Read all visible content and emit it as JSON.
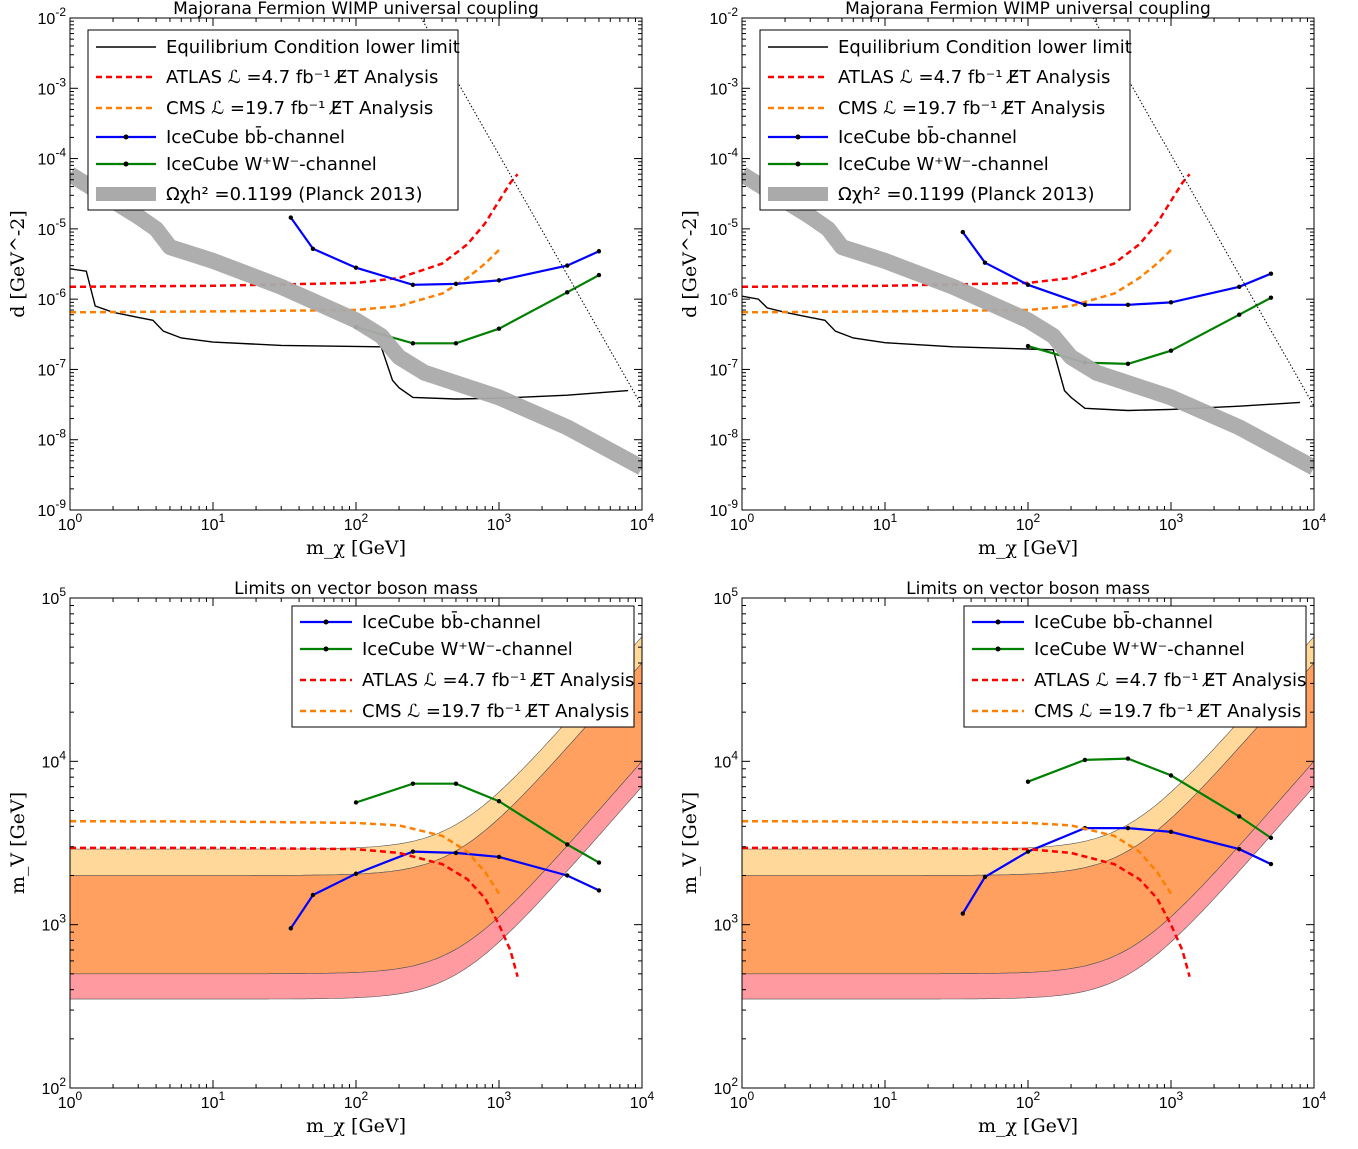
{
  "chart_data": [
    {
      "type": "line",
      "panel": "top-left",
      "title": "Majorana Fermion WIMP universal coupling",
      "xlabel": "m_χ [GeV]",
      "ylabel": "d [GeV^-2]",
      "xscale": "log",
      "yscale": "log",
      "xlim": [
        1,
        10000
      ],
      "ylim": [
        1e-09,
        0.01
      ],
      "xticks": [
        "10^0",
        "10^1",
        "10^2",
        "10^3",
        "10^4"
      ],
      "yticks": [
        "10^-9",
        "10^-8",
        "10^-7",
        "10^-6",
        "10^-5",
        "10^-4",
        "10^-3",
        "10^-2"
      ],
      "legend_position": "top-left",
      "legend": [
        "Equilibrium Condition lower limit",
        "ATLAS ℒ =4.7 fb⁻¹ E̸T Analysis",
        "CMS ℒ =19.7 fb⁻¹ E̸T Analysis",
        "IceCube bb̄-channel",
        "IceCube W⁺W⁻-channel",
        "Ωχh² =0.1199 (Planck 2013)"
      ],
      "series": [
        {
          "name": "Equilibrium Condition lower limit",
          "color": "#000000",
          "style": "solid",
          "x": [
            1,
            1.3,
            1.5,
            2,
            3,
            3.8,
            4.5,
            6,
            10,
            30,
            150,
            180,
            200,
            250,
            500,
            1000,
            3000,
            8000
          ],
          "y": [
            2.7e-06,
            2.5e-06,
            8e-07,
            6.5e-07,
            5.5e-07,
            5e-07,
            3.5e-07,
            2.8e-07,
            2.45e-07,
            2.2e-07,
            2.1e-07,
            7e-08,
            5.5e-08,
            4e-08,
            3.8e-08,
            3.9e-08,
            4.3e-08,
            5e-08
          ]
        },
        {
          "name": "ATLAS ℒ =4.7 fb⁻¹ E̸T Analysis",
          "color": "#ff0000",
          "style": "dashed",
          "x": [
            1,
            10,
            100,
            200,
            400,
            600,
            800,
            1000,
            1200,
            1350
          ],
          "y": [
            1.5e-06,
            1.55e-06,
            1.7e-06,
            2e-06,
            3.2e-06,
            6e-06,
            1.2e-05,
            2.5e-05,
            4.5e-05,
            6e-05
          ]
        },
        {
          "name": "CMS ℒ =19.7 fb⁻¹ E̸T Analysis",
          "color": "#ff8000",
          "style": "dashed",
          "x": [
            1,
            10,
            100,
            200,
            400,
            600,
            800,
            1000
          ],
          "y": [
            6.5e-07,
            6.7e-07,
            7e-07,
            8e-07,
            1.2e-06,
            2e-06,
            3.2e-06,
            5e-06
          ]
        },
        {
          "name": "IceCube bb̄-channel",
          "color": "#0000ff",
          "style": "solid",
          "x": [
            35,
            50,
            100,
            250,
            500,
            1000,
            3000,
            5000
          ],
          "y": [
            1.45e-05,
            5.2e-06,
            2.8e-06,
            1.6e-06,
            1.65e-06,
            1.85e-06,
            3e-06,
            4.8e-06
          ]
        },
        {
          "name": "IceCube W⁺W⁻-channel",
          "color": "#008000",
          "style": "solid",
          "x": [
            100,
            250,
            500,
            1000,
            3000,
            5000
          ],
          "y": [
            4e-07,
            2.35e-07,
            2.35e-07,
            3.8e-07,
            1.25e-06,
            2.2e-06
          ]
        },
        {
          "name": "Ωχh² =0.1199 (Planck 2013)",
          "color": "#aaaaaa",
          "style": "band",
          "x": [
            1,
            3,
            4,
            5,
            10,
            30,
            100,
            150,
            200,
            300,
            1000,
            3000,
            10000
          ],
          "y": [
            6e-05,
            1.5e-05,
            1e-05,
            5.5e-06,
            3.5e-06,
            1.5e-06,
            5e-07,
            3e-07,
            1.5e-07,
            9e-08,
            4e-08,
            1.5e-08,
            4e-09
          ]
        },
        {
          "name": "",
          "color": "#000000",
          "style": "dotted",
          "x": [
            150,
            10000
          ],
          "y": [
            0.1,
            3e-08
          ]
        }
      ]
    },
    {
      "type": "line",
      "panel": "top-right",
      "title": "Majorana Fermion WIMP universal coupling",
      "xlabel": "m_χ [GeV]",
      "ylabel": "d [GeV^-2]",
      "xscale": "log",
      "yscale": "log",
      "xlim": [
        1,
        10000
      ],
      "ylim": [
        1e-09,
        0.01
      ],
      "xticks": [
        "10^0",
        "10^1",
        "10^2",
        "10^3",
        "10^4"
      ],
      "yticks": [
        "10^-9",
        "10^-8",
        "10^-7",
        "10^-6",
        "10^-5",
        "10^-4",
        "10^-3",
        "10^-2"
      ],
      "legend_position": "top-left",
      "legend": [
        "Equilibrium Condition lower limit",
        "ATLAS ℒ =4.7 fb⁻¹ E̸T Analysis",
        "CMS ℒ =19.7 fb⁻¹ E̸T Analysis",
        "IceCube bb̄-channel",
        "IceCube W⁺W⁻-channel",
        "Ωχh² =0.1199 (Planck 2013)"
      ],
      "series": [
        {
          "name": "Equilibrium Condition lower limit",
          "color": "#000000",
          "style": "solid",
          "x": [
            1,
            1.3,
            1.5,
            2,
            3,
            3.8,
            4.5,
            6,
            10,
            30,
            100,
            150,
            180,
            200,
            250,
            500,
            1000,
            3000,
            8000
          ],
          "y": [
            1.1e-06,
            1e-06,
            7.5e-07,
            6.5e-07,
            5.5e-07,
            5e-07,
            3.5e-07,
            2.8e-07,
            2.4e-07,
            2.1e-07,
            1.95e-07,
            1.9e-07,
            5e-08,
            4e-08,
            2.8e-08,
            2.6e-08,
            2.7e-08,
            3e-08,
            3.4e-08
          ]
        },
        {
          "name": "ATLAS ℒ =4.7 fb⁻¹ E̸T Analysis",
          "color": "#ff0000",
          "style": "dashed",
          "x": [
            1,
            10,
            100,
            200,
            400,
            600,
            800,
            1000,
            1200,
            1350
          ],
          "y": [
            1.5e-06,
            1.55e-06,
            1.7e-06,
            2e-06,
            3.2e-06,
            6e-06,
            1.2e-05,
            2.5e-05,
            4.5e-05,
            6e-05
          ]
        },
        {
          "name": "CMS ℒ =19.7 fb⁻¹ E̸T Analysis",
          "color": "#ff8000",
          "style": "dashed",
          "x": [
            1,
            10,
            100,
            200,
            400,
            600,
            800,
            1000
          ],
          "y": [
            6.5e-07,
            6.7e-07,
            7e-07,
            8e-07,
            1.2e-06,
            2e-06,
            3.2e-06,
            5e-06
          ]
        },
        {
          "name": "IceCube bb̄-channel",
          "color": "#0000ff",
          "style": "solid",
          "x": [
            35,
            50,
            100,
            250,
            500,
            1000,
            3000,
            5000
          ],
          "y": [
            9e-06,
            3.3e-06,
            1.6e-06,
            8.3e-07,
            8.3e-07,
            9e-07,
            1.5e-06,
            2.3e-06
          ]
        },
        {
          "name": "IceCube W⁺W⁻-channel",
          "color": "#008000",
          "style": "solid",
          "x": [
            100,
            250,
            500,
            1000,
            3000,
            5000
          ],
          "y": [
            2.15e-07,
            1.25e-07,
            1.2e-07,
            1.85e-07,
            6e-07,
            1.05e-06
          ]
        },
        {
          "name": "Ωχh² =0.1199 (Planck 2013)",
          "color": "#aaaaaa",
          "style": "band",
          "x": [
            1,
            3,
            4,
            5,
            10,
            30,
            100,
            150,
            200,
            300,
            1000,
            3000,
            10000
          ],
          "y": [
            6e-05,
            1.5e-05,
            1e-05,
            5.5e-06,
            3.5e-06,
            1.5e-06,
            5e-07,
            3e-07,
            1.5e-07,
            9e-08,
            4e-08,
            1.5e-08,
            4e-09
          ]
        },
        {
          "name": "",
          "color": "#000000",
          "style": "dotted",
          "x": [
            150,
            10000
          ],
          "y": [
            0.1,
            3e-08
          ]
        }
      ]
    },
    {
      "type": "line",
      "panel": "bottom-left",
      "title": "Limits on vector boson mass",
      "xlabel": "m_χ [GeV]",
      "ylabel": "m_V [GeV]",
      "xscale": "log",
      "yscale": "log",
      "xlim": [
        1,
        10000
      ],
      "ylim": [
        100,
        100000
      ],
      "xticks": [
        "10^0",
        "10^1",
        "10^2",
        "10^3",
        "10^4"
      ],
      "yticks": [
        "10^2",
        "10^3",
        "10^4",
        "10^5"
      ],
      "legend_position": "top-right",
      "legend": [
        "IceCube bb̄-channel",
        "IceCube W⁺W⁻-channel",
        "ATLAS ℒ =4.7 fb⁻¹ E̸T Analysis",
        "CMS ℒ =19.7 fb⁻¹ E̸T Analysis"
      ],
      "bands": [
        {
          "color": "#ff9aa0",
          "lower": 350,
          "upper": 500
        },
        {
          "color": "#ffa060",
          "lower": 500,
          "upper": 2000
        },
        {
          "color": "#ffd89a",
          "lower": 2000,
          "upper": 2900
        }
      ],
      "series": [
        {
          "name": "IceCube bb̄-channel",
          "color": "#0000ff",
          "style": "solid",
          "x": [
            35,
            50,
            100,
            250,
            500,
            1000,
            3000,
            5000
          ],
          "y": [
            950,
            1520,
            2050,
            2800,
            2750,
            2600,
            2000,
            1620
          ]
        },
        {
          "name": "IceCube W⁺W⁻-channel",
          "color": "#008000",
          "style": "solid",
          "x": [
            100,
            250,
            500,
            1000,
            3000,
            5000
          ],
          "y": [
            5600,
            7300,
            7300,
            5700,
            3100,
            2400
          ]
        },
        {
          "name": "ATLAS ℒ =4.7 fb⁻¹ E̸T Analysis",
          "color": "#ff0000",
          "style": "dashed",
          "x": [
            1,
            10,
            100,
            200,
            400,
            600,
            800,
            1000,
            1200,
            1350
          ],
          "y": [
            2950,
            2950,
            2900,
            2750,
            2350,
            1900,
            1450,
            1000,
            700,
            480
          ]
        },
        {
          "name": "CMS ℒ =19.7 fb⁻¹ E̸T Analysis",
          "color": "#ff8000",
          "style": "dashed",
          "x": [
            1,
            10,
            100,
            200,
            400,
            600,
            800,
            1000
          ],
          "y": [
            4300,
            4280,
            4200,
            4050,
            3500,
            2800,
            2100,
            1550
          ]
        }
      ]
    },
    {
      "type": "line",
      "panel": "bottom-right",
      "title": "Limits on vector boson mass",
      "xlabel": "m_χ [GeV]",
      "ylabel": "m_V [GeV]",
      "xscale": "log",
      "yscale": "log",
      "xlim": [
        1,
        10000
      ],
      "ylim": [
        100,
        100000
      ],
      "xticks": [
        "10^0",
        "10^1",
        "10^2",
        "10^3",
        "10^4"
      ],
      "yticks": [
        "10^2",
        "10^3",
        "10^4",
        "10^5"
      ],
      "legend_position": "top-right",
      "legend": [
        "IceCube bb̄-channel",
        "IceCube W⁺W⁻-channel",
        "ATLAS ℒ =4.7 fb⁻¹ E̸T Analysis",
        "CMS ℒ =19.7 fb⁻¹ E̸T Analysis"
      ],
      "bands": [
        {
          "color": "#ff9aa0",
          "lower": 350,
          "upper": 500
        },
        {
          "color": "#ffa060",
          "lower": 500,
          "upper": 2000
        },
        {
          "color": "#ffd89a",
          "lower": 2000,
          "upper": 2900
        }
      ],
      "series": [
        {
          "name": "IceCube bb̄-channel",
          "color": "#0000ff",
          "style": "solid",
          "x": [
            35,
            50,
            100,
            250,
            500,
            1000,
            3000,
            5000
          ],
          "y": [
            1170,
            1960,
            2800,
            3900,
            3900,
            3700,
            2900,
            2350
          ]
        },
        {
          "name": "IceCube W⁺W⁻-channel",
          "color": "#008000",
          "style": "solid",
          "x": [
            100,
            250,
            500,
            1000,
            3000,
            5000
          ],
          "y": [
            7500,
            10200,
            10400,
            8200,
            4600,
            3400
          ]
        },
        {
          "name": "ATLAS ℒ =4.7 fb⁻¹ E̸T Analysis",
          "color": "#ff0000",
          "style": "dashed",
          "x": [
            1,
            10,
            100,
            200,
            400,
            600,
            800,
            1000,
            1200,
            1350
          ],
          "y": [
            2950,
            2950,
            2900,
            2750,
            2350,
            1900,
            1450,
            1000,
            700,
            480
          ]
        },
        {
          "name": "CMS ℒ =19.7 fb⁻¹ E̸T Analysis",
          "color": "#ff8000",
          "style": "dashed",
          "x": [
            1,
            10,
            100,
            200,
            400,
            600,
            800,
            1000
          ],
          "y": [
            4300,
            4280,
            4200,
            4050,
            3500,
            2800,
            2100,
            1550
          ]
        }
      ]
    }
  ]
}
